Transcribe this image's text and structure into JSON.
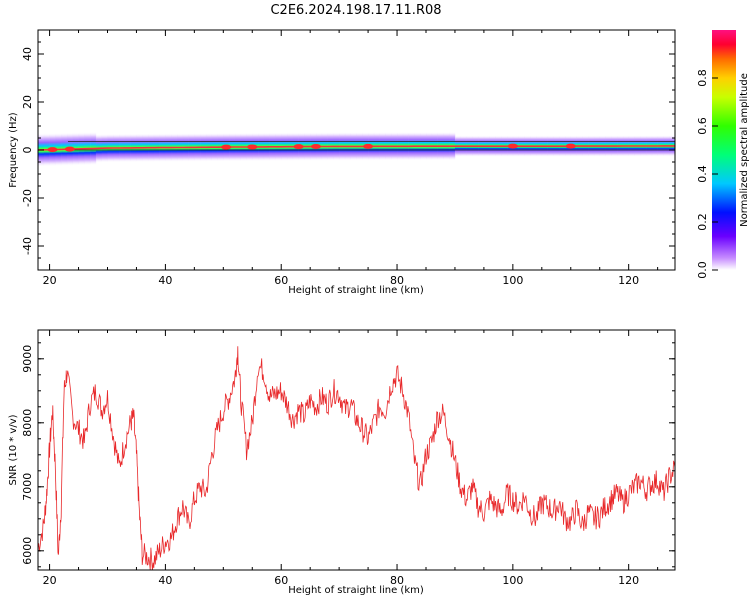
{
  "title": "C2E6.2024.198.17.11.R08",
  "chart_data": [
    {
      "type": "heatmap",
      "xlabel": "Height of straight line (km)",
      "ylabel": "Frequency (Hz)",
      "xlim": [
        18,
        128
      ],
      "ylim": [
        -50,
        50
      ],
      "xticks": [
        20,
        40,
        60,
        80,
        100,
        120
      ],
      "yticks": [
        40,
        20,
        0,
        -20,
        -40
      ],
      "colorbar": {
        "label": "Normalized spectral amplitude",
        "range": [
          0,
          1
        ],
        "ticks": [
          0.0,
          0.2,
          0.4,
          0.6,
          0.8
        ]
      },
      "ridge": {
        "frequency_hz": [
          [
            18,
            0.0
          ],
          [
            30,
            0.8
          ],
          [
            50,
            1.2
          ],
          [
            70,
            1.5
          ],
          [
            90,
            1.6
          ],
          [
            110,
            1.6
          ],
          [
            128,
            1.7
          ]
        ],
        "hot_spots_km": [
          20.5,
          23.5,
          50.5,
          55,
          63,
          66,
          75,
          100,
          110
        ]
      }
    },
    {
      "type": "line",
      "xlabel": "Height of straight line (km)",
      "ylabel": "SNR (10 * v/v)",
      "xlim": [
        18,
        128
      ],
      "ylim": [
        5700,
        9450
      ],
      "xticks": [
        20,
        40,
        60,
        80,
        100,
        120
      ],
      "yticks": [
        6000,
        7000,
        8000,
        9000
      ],
      "series": [
        {
          "color": "#e8282a",
          "x": [
            18,
            19,
            19.5,
            20,
            20.5,
            21,
            21.5,
            22,
            22.5,
            23,
            24,
            25,
            26,
            27,
            28,
            29,
            30,
            31,
            32,
            33,
            34,
            34.5,
            35,
            35.5,
            36,
            37,
            38,
            39,
            40,
            41,
            42,
            43,
            44,
            45,
            46,
            47,
            48,
            49,
            50,
            51,
            52,
            52.5,
            53,
            54,
            55,
            56,
            57,
            58,
            59,
            60,
            61,
            62,
            63,
            64,
            65,
            66,
            67,
            68,
            69,
            70,
            71,
            72,
            73,
            74,
            75,
            76,
            77,
            78,
            79,
            80,
            81,
            82,
            83,
            84,
            85,
            86,
            87,
            88,
            89,
            90,
            91,
            92,
            93,
            94,
            95,
            96,
            97,
            98,
            99,
            100,
            101,
            102,
            103,
            104,
            105,
            106,
            107,
            108,
            109,
            110,
            111,
            112,
            113,
            114,
            115,
            116,
            117,
            118,
            119,
            120,
            121,
            122,
            123,
            124,
            125,
            126,
            127,
            128
          ],
          "y": [
            6050,
            6400,
            6900,
            7600,
            8200,
            7300,
            5900,
            6700,
            8500,
            8800,
            8100,
            7900,
            7700,
            8300,
            8500,
            8200,
            8400,
            7800,
            7300,
            7700,
            8000,
            8100,
            7500,
            6600,
            5950,
            5900,
            5850,
            6000,
            6150,
            6200,
            6500,
            6700,
            6400,
            6800,
            7000,
            6900,
            7500,
            7900,
            8200,
            8400,
            8700,
            9150,
            8400,
            7600,
            8000,
            8900,
            8800,
            8400,
            8450,
            8500,
            8300,
            8050,
            8200,
            8100,
            8350,
            8250,
            8400,
            8300,
            8500,
            8450,
            8200,
            8300,
            8050,
            7900,
            7750,
            8000,
            8250,
            8200,
            8600,
            8750,
            8500,
            8100,
            7400,
            7000,
            7500,
            7700,
            8100,
            8150,
            7800,
            7400,
            7000,
            6800,
            7000,
            6700,
            6600,
            6800,
            6700,
            6600,
            6900,
            6800,
            6700,
            6850,
            6600,
            6500,
            6750,
            6700,
            6600,
            6750,
            6500,
            6450,
            6650,
            6400,
            6600,
            6500,
            6550,
            6700,
            6800,
            6900,
            6750,
            6900,
            7000,
            7100,
            6950,
            7050,
            7100,
            6900,
            7150,
            7300
          ]
        }
      ]
    }
  ]
}
